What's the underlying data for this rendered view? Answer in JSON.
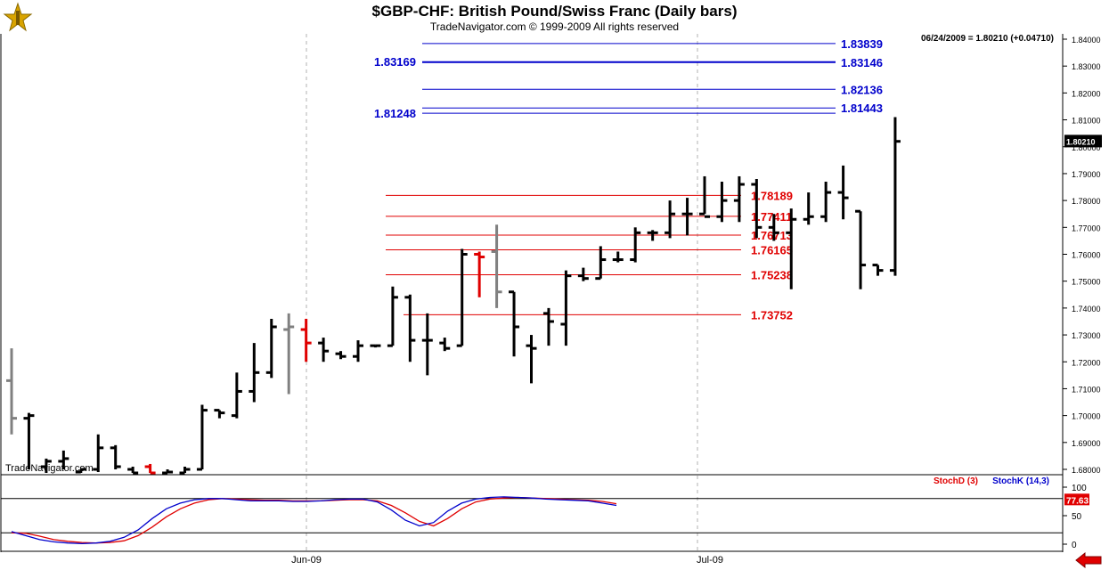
{
  "header": {
    "title": "$GBP-CHF:  British Pound/Swiss Franc  (Daily bars)",
    "subtitle": "TradeNavigator.com © 1999-2009 All rights reserved",
    "readout": "06/24/2009 = 1.80210 (+0.04710)",
    "watermark": "TradeNavigator.com"
  },
  "chart_data": [
    {
      "type": "ohlc",
      "x_labels": [
        "Jun-09",
        "Jul-09"
      ],
      "ylim": [
        1.675,
        1.845
      ],
      "y_ticks": [
        "1.84000",
        "1.83000",
        "1.82000",
        "1.81000",
        "1.80000",
        "1.79000",
        "1.78000",
        "1.77000",
        "1.76000",
        "1.75000",
        "1.74000",
        "1.73000",
        "1.72000",
        "1.71000",
        "1.70000",
        "1.69000",
        "1.68000"
      ],
      "last_price": "1.80210",
      "colors": {
        "bar": "#000000",
        "doji": "#808080",
        "down_key": "#e00000",
        "fib_high": "#0000cc",
        "fib_low": "#e00000"
      },
      "bars": [
        {
          "h": 1.725,
          "l": 1.693,
          "o": 1.713,
          "c": 1.699,
          "color": "#808080"
        },
        {
          "h": 1.701,
          "l": 1.68,
          "o": 1.699,
          "c": 1.7,
          "color": "#000000"
        },
        {
          "h": 1.684,
          "l": 1.675,
          "o": 1.681,
          "c": 1.683,
          "color": "#000000"
        },
        {
          "h": 1.687,
          "l": 1.68,
          "o": 1.683,
          "c": 1.684,
          "color": "#000000"
        },
        {
          "h": 1.68,
          "l": 1.675,
          "o": 1.679,
          "c": 1.68,
          "color": "#000000"
        },
        {
          "h": 1.693,
          "l": 1.679,
          "o": 1.68,
          "c": 1.688,
          "color": "#000000"
        },
        {
          "h": 1.689,
          "l": 1.68,
          "o": 1.688,
          "c": 1.681,
          "color": "#000000"
        },
        {
          "h": 1.681,
          "l": 1.676,
          "o": 1.68,
          "c": 1.678,
          "color": "#000000"
        },
        {
          "h": 1.682,
          "l": 1.676,
          "o": 1.681,
          "c": 1.677,
          "color": "#e00000"
        },
        {
          "h": 1.68,
          "l": 1.676,
          "o": 1.678,
          "c": 1.679,
          "color": "#000000"
        },
        {
          "h": 1.681,
          "l": 1.676,
          "o": 1.678,
          "c": 1.68,
          "color": "#000000"
        },
        {
          "h": 1.704,
          "l": 1.68,
          "o": 1.68,
          "c": 1.702,
          "color": "#000000"
        },
        {
          "h": 1.702,
          "l": 1.699,
          "o": 1.702,
          "c": 1.701,
          "color": "#000000"
        },
        {
          "h": 1.716,
          "l": 1.699,
          "o": 1.7,
          "c": 1.709,
          "color": "#000000"
        },
        {
          "h": 1.727,
          "l": 1.705,
          "o": 1.709,
          "c": 1.716,
          "color": "#000000"
        },
        {
          "h": 1.736,
          "l": 1.714,
          "o": 1.716,
          "c": 1.733,
          "color": "#000000"
        },
        {
          "h": 1.738,
          "l": 1.708,
          "o": 1.732,
          "c": 1.733,
          "color": "#808080"
        },
        {
          "h": 1.736,
          "l": 1.72,
          "o": 1.732,
          "c": 1.727,
          "color": "#e00000"
        },
        {
          "h": 1.729,
          "l": 1.72,
          "o": 1.727,
          "c": 1.724,
          "color": "#000000"
        },
        {
          "h": 1.724,
          "l": 1.721,
          "o": 1.723,
          "c": 1.722,
          "color": "#000000"
        },
        {
          "h": 1.728,
          "l": 1.72,
          "o": 1.722,
          "c": 1.726,
          "color": "#000000"
        },
        {
          "h": 1.726,
          "l": 1.726,
          "o": 1.726,
          "c": 1.726,
          "color": "#000000"
        },
        {
          "h": 1.748,
          "l": 1.726,
          "o": 1.726,
          "c": 1.744,
          "color": "#000000"
        },
        {
          "h": 1.745,
          "l": 1.72,
          "o": 1.744,
          "c": 1.728,
          "color": "#000000"
        },
        {
          "h": 1.738,
          "l": 1.715,
          "o": 1.728,
          "c": 1.728,
          "color": "#000000"
        },
        {
          "h": 1.729,
          "l": 1.724,
          "o": 1.727,
          "c": 1.725,
          "color": "#000000"
        },
        {
          "h": 1.762,
          "l": 1.726,
          "o": 1.726,
          "c": 1.76,
          "color": "#000000"
        },
        {
          "h": 1.761,
          "l": 1.744,
          "o": 1.76,
          "c": 1.759,
          "color": "#e00000"
        },
        {
          "h": 1.771,
          "l": 1.74,
          "o": 1.761,
          "c": 1.746,
          "color": "#808080"
        },
        {
          "h": 1.746,
          "l": 1.722,
          "o": 1.746,
          "c": 1.733,
          "color": "#000000"
        },
        {
          "h": 1.73,
          "l": 1.712,
          "o": 1.726,
          "c": 1.725,
          "color": "#000000"
        },
        {
          "h": 1.74,
          "l": 1.726,
          "o": 1.738,
          "c": 1.735,
          "color": "#000000"
        },
        {
          "h": 1.754,
          "l": 1.726,
          "o": 1.734,
          "c": 1.752,
          "color": "#000000"
        },
        {
          "h": 1.755,
          "l": 1.75,
          "o": 1.752,
          "c": 1.751,
          "color": "#000000"
        },
        {
          "h": 1.763,
          "l": 1.751,
          "o": 1.751,
          "c": 1.758,
          "color": "#000000"
        },
        {
          "h": 1.761,
          "l": 1.757,
          "o": 1.758,
          "c": 1.758,
          "color": "#000000"
        },
        {
          "h": 1.77,
          "l": 1.757,
          "o": 1.758,
          "c": 1.768,
          "color": "#000000"
        },
        {
          "h": 1.769,
          "l": 1.765,
          "o": 1.768,
          "c": 1.768,
          "color": "#000000"
        },
        {
          "h": 1.78,
          "l": 1.766,
          "o": 1.768,
          "c": 1.775,
          "color": "#000000"
        },
        {
          "h": 1.781,
          "l": 1.767,
          "o": 1.775,
          "c": 1.775,
          "color": "#000000"
        },
        {
          "h": 1.789,
          "l": 1.775,
          "o": 1.775,
          "c": 1.774,
          "color": "#000000"
        },
        {
          "h": 1.787,
          "l": 1.772,
          "o": 1.774,
          "c": 1.78,
          "color": "#000000"
        },
        {
          "h": 1.789,
          "l": 1.772,
          "o": 1.78,
          "c": 1.786,
          "color": "#000000"
        },
        {
          "h": 1.788,
          "l": 1.766,
          "o": 1.786,
          "c": 1.77,
          "color": "#000000"
        },
        {
          "h": 1.775,
          "l": 1.765,
          "o": 1.77,
          "c": 1.768,
          "color": "#000000"
        },
        {
          "h": 1.777,
          "l": 1.747,
          "o": 1.768,
          "c": 1.773,
          "color": "#000000"
        },
        {
          "h": 1.783,
          "l": 1.771,
          "o": 1.773,
          "c": 1.774,
          "color": "#000000"
        },
        {
          "h": 1.787,
          "l": 1.772,
          "o": 1.774,
          "c": 1.783,
          "color": "#000000"
        },
        {
          "h": 1.793,
          "l": 1.773,
          "o": 1.783,
          "c": 1.781,
          "color": "#000000"
        },
        {
          "h": 1.776,
          "l": 1.747,
          "o": 1.776,
          "c": 1.756,
          "color": "#000000"
        },
        {
          "h": 1.756,
          "l": 1.752,
          "o": 1.756,
          "c": 1.754,
          "color": "#000000"
        },
        {
          "h": 1.811,
          "l": 1.752,
          "o": 1.754,
          "c": 1.802,
          "color": "#000000"
        }
      ],
      "fib_high": {
        "levels": [
          {
            "value": 1.83839,
            "label": "1.83839"
          },
          {
            "value": 1.83146,
            "label": "1.83146"
          },
          {
            "value": 1.82136,
            "label": "1.82136"
          },
          {
            "value": 1.81443,
            "label": "1.81443"
          }
        ],
        "left_labels": [
          {
            "value": 1.83169,
            "label": "1.83169"
          },
          {
            "value": 1.81248,
            "label": "1.81248"
          }
        ]
      },
      "fib_low": {
        "levels": [
          {
            "value": 1.78189,
            "label": "1.78189"
          },
          {
            "value": 1.77411,
            "label": "1.77411"
          },
          {
            "value": 1.76713,
            "label": "1.76713"
          },
          {
            "value": 1.76165,
            "label": "1.76165"
          },
          {
            "value": 1.75238,
            "label": "1.75238"
          },
          {
            "value": 1.73752,
            "label": "1.73752"
          }
        ]
      }
    },
    {
      "type": "line",
      "ylim": [
        -5,
        105
      ],
      "y_ticks": [
        "100",
        "50",
        "0"
      ],
      "reference_levels": [
        80,
        20
      ],
      "last_value": "77.63",
      "series": [
        {
          "name": "StochD (3)",
          "color": "#e00000",
          "values": [
            20,
            19,
            14,
            8,
            5,
            3,
            2,
            3,
            6,
            15,
            30,
            48,
            62,
            72,
            78,
            80,
            79,
            78,
            77,
            77,
            76,
            76,
            76,
            77,
            78,
            78,
            76,
            68,
            55,
            40,
            32,
            45,
            62,
            74,
            79,
            81,
            82,
            81,
            80,
            79,
            78,
            77,
            75,
            71
          ]
        },
        {
          "name": "StochK (14,3)",
          "color": "#0000cc",
          "values": [
            22,
            15,
            8,
            4,
            2,
            1,
            2,
            5,
            12,
            25,
            45,
            62,
            72,
            78,
            80,
            80,
            78,
            76,
            76,
            76,
            75,
            75,
            76,
            78,
            79,
            79,
            74,
            60,
            42,
            32,
            38,
            58,
            72,
            79,
            82,
            83,
            82,
            81,
            79,
            78,
            77,
            76,
            72,
            68
          ]
        }
      ]
    }
  ]
}
